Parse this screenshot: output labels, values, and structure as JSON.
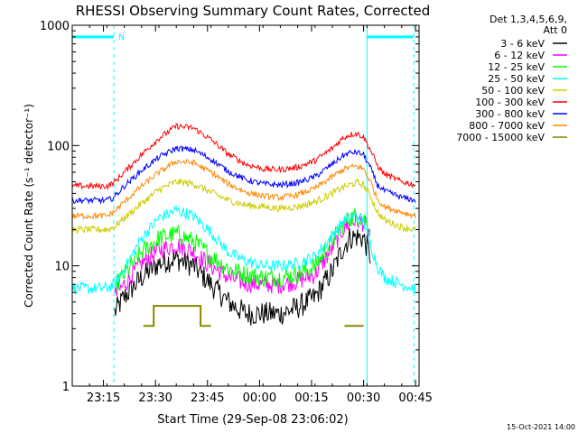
{
  "chart_data": {
    "type": "line",
    "title": "RHESSI Observing Summary Count Rates, Corrected",
    "xlabel": "Start Time (29-Sep-08 23:06:02)",
    "ylabel": "Corrected Count Rate (s⁻¹ detector⁻¹)",
    "yscale": "log",
    "ylim": [
      1,
      1000
    ],
    "xlim_minutes": [
      0,
      100
    ],
    "x_tick_labels": [
      "23:15",
      "23:30",
      "23:45",
      "00:00",
      "00:15",
      "00:30",
      "00:45"
    ],
    "x_tick_minutes": [
      9,
      24,
      39,
      54,
      69,
      84,
      99
    ],
    "y_tick_labels": [
      "1",
      "10",
      "100",
      "1000"
    ],
    "y_tick_values": [
      1,
      10,
      100,
      1000
    ],
    "legend_header": [
      "Det 1,3,4,5,6,9,",
      "Att 0"
    ],
    "legend_placement": "right",
    "grid": false,
    "x_units": "minutes after 23:06:02",
    "x": [
      0,
      5,
      10,
      12,
      15,
      20,
      25,
      30,
      35,
      40,
      45,
      50,
      55,
      60,
      65,
      70,
      75,
      78,
      80,
      82,
      84,
      86,
      88,
      90,
      95,
      99
    ],
    "series": [
      {
        "name": "3 - 6 keV",
        "color": "#000000",
        "noise": 0.1,
        "values": [
          null,
          null,
          null,
          4.0,
          5.5,
          8.0,
          10.5,
          11.5,
          10.0,
          7.0,
          5.0,
          4.0,
          4.0,
          4.0,
          4.5,
          5.5,
          9.0,
          14.0,
          17.0,
          17.5,
          17.0,
          12.0,
          null,
          null,
          null,
          null
        ]
      },
      {
        "name": "6 - 12 keV",
        "color": "#ff00ff",
        "noise": 0.08,
        "values": [
          null,
          null,
          null,
          5.5,
          7.0,
          10.5,
          13.5,
          15.0,
          13.0,
          10.0,
          8.0,
          7.2,
          7.0,
          7.0,
          7.5,
          8.5,
          14.0,
          20.0,
          23.0,
          24.0,
          23.0,
          18.0,
          null,
          null,
          null,
          null
        ]
      },
      {
        "name": "12 - 25 keV",
        "color": "#00ff00",
        "noise": 0.08,
        "values": [
          null,
          null,
          null,
          6.5,
          8.5,
          13.0,
          17.0,
          18.5,
          16.0,
          12.0,
          9.5,
          8.5,
          8.0,
          8.0,
          8.5,
          10.0,
          16.0,
          22.0,
          25.0,
          26.0,
          25.0,
          20.0,
          null,
          null,
          null,
          null
        ]
      },
      {
        "name": "25 - 50 keV",
        "color": "#00ffff",
        "noise": 0.05,
        "values": [
          6.5,
          6.5,
          6.5,
          7.0,
          9.5,
          17.0,
          25.0,
          29.0,
          26.0,
          19.0,
          13.0,
          11.0,
          10.0,
          10.0,
          10.5,
          12.0,
          18.0,
          23.0,
          25.0,
          26.0,
          24.0,
          15.0,
          10.0,
          8.0,
          7.0,
          6.5
        ]
      },
      {
        "name": "50 - 100 keV",
        "color": "#cccc00",
        "noise": 0.03,
        "values": [
          20,
          20,
          20,
          21,
          25,
          33,
          43,
          50,
          48,
          41,
          35,
          32,
          31,
          30,
          31,
          34,
          40,
          45,
          47,
          49,
          47,
          38,
          28,
          24,
          21,
          20
        ]
      },
      {
        "name": "100 - 300 keV",
        "color": "#ff0000",
        "noise": 0.025,
        "values": [
          46,
          46,
          46,
          49,
          60,
          84,
          115,
          145,
          140,
          112,
          85,
          70,
          64,
          63,
          66,
          75,
          95,
          115,
          123,
          126,
          118,
          92,
          68,
          58,
          50,
          47
        ]
      },
      {
        "name": "300 - 800 keV",
        "color": "#0000ff",
        "noise": 0.025,
        "values": [
          35,
          35,
          35,
          37,
          46,
          62,
          80,
          95,
          92,
          77,
          61,
          52,
          48,
          47,
          49,
          55,
          70,
          82,
          87,
          88,
          84,
          65,
          47,
          42,
          37,
          35
        ]
      },
      {
        "name": "800 - 7000 keV",
        "color": "#ff8800",
        "noise": 0.025,
        "values": [
          26,
          26,
          26,
          28,
          34,
          46,
          60,
          74,
          72,
          60,
          48,
          41,
          38,
          37,
          39,
          44,
          55,
          63,
          66,
          67,
          64,
          50,
          36,
          31,
          28,
          26
        ]
      },
      {
        "name": "7000 - 15000 keV",
        "color": "#888800",
        "noise": 0,
        "values": [
          null,
          null,
          null,
          null,
          null,
          3.0,
          4.5,
          5.5,
          4.5,
          3.0,
          null,
          null,
          null,
          null,
          null,
          null,
          null,
          3.0,
          3.5,
          3.5,
          3.0,
          null,
          null,
          null,
          null,
          null
        ]
      }
    ],
    "attenuator_intervals": [
      {
        "label": "",
        "level": 800,
        "x_start": 0,
        "x_end": 12
      },
      {
        "label": "N",
        "level": 800,
        "x_start": 12,
        "x_end": 12
      },
      {
        "label": "",
        "level": 800,
        "x_start": 85,
        "x_end": 98.5
      }
    ],
    "dashed_markers_minutes": [
      12,
      98.5
    ],
    "solid_markers_minutes": [
      0,
      85
    ]
  },
  "footer": {
    "timestamp": "15-Oct-2021 14:00"
  }
}
